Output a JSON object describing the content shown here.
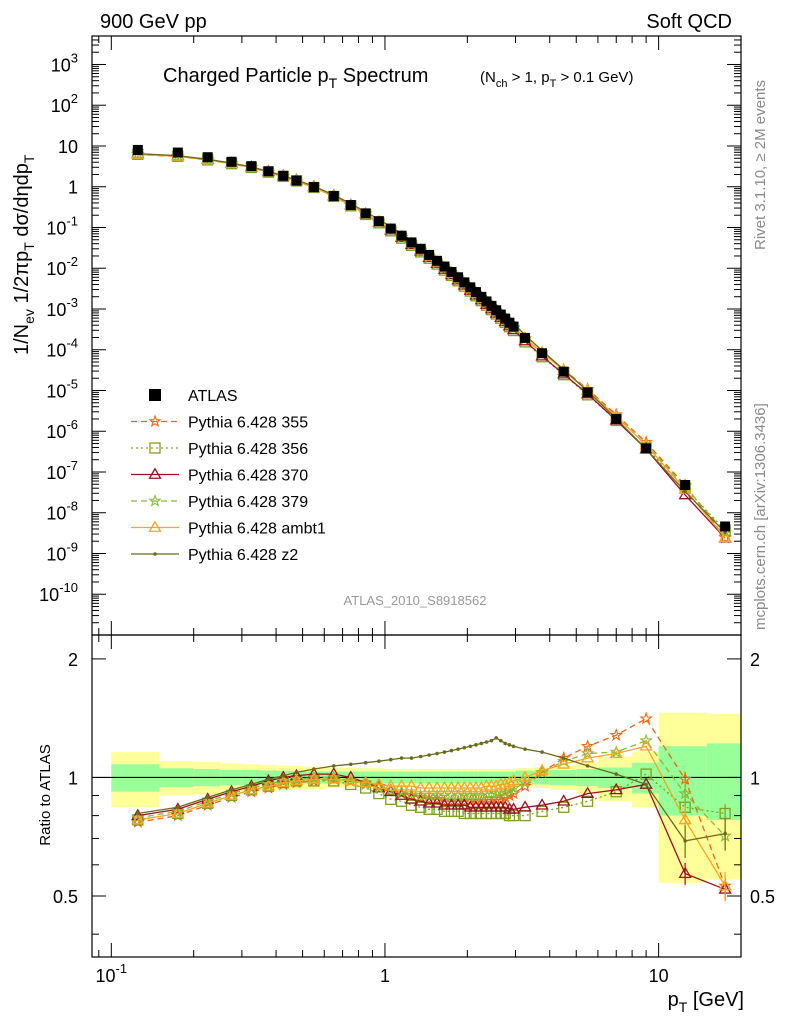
{
  "header": {
    "left": "900 GeV pp",
    "right": "Soft QCD"
  },
  "side_labels": {
    "rivet": "Rivet 3.1.10, ≥ 2M events",
    "mcplots": "mcplots.cern.ch [arXiv:1306.3436]"
  },
  "watermark": "ATLAS_2010_S8918562",
  "chart_data": [
    {
      "type": "scatter",
      "title": "Charged Particle p",
      "title_sub": "T",
      "title_tail": " Spectrum",
      "title_cut": "(N",
      "title_cut_sub1": "ch",
      "title_cut_mid": " > 1, p",
      "title_cut_sub2": "T",
      "title_cut_end": " > 0.1 GeV)",
      "ylabel": "1/N_ev 1/2πp_T dσ/dηdp_T",
      "yscale": "log",
      "xscale": "log",
      "xlim": [
        0.085,
        20
      ],
      "ylim": [
        1e-11,
        5000
      ],
      "y_ticks": [
        {
          "v": 1000.0,
          "m": "10",
          "e": "3"
        },
        {
          "v": 100.0,
          "m": "10",
          "e": "2"
        },
        {
          "v": 10,
          "m": "10",
          "e": ""
        },
        {
          "v": 1,
          "m": "1",
          "e": ""
        },
        {
          "v": 0.1,
          "m": "10",
          "e": "-1"
        },
        {
          "v": 0.01,
          "m": "10",
          "e": "-2"
        },
        {
          "v": 0.001,
          "m": "10",
          "e": "-3"
        },
        {
          "v": 0.0001,
          "m": "10",
          "e": "-4"
        },
        {
          "v": 1e-05,
          "m": "10",
          "e": "-5"
        },
        {
          "v": 1e-06,
          "m": "10",
          "e": "-6"
        },
        {
          "v": 1e-07,
          "m": "10",
          "e": "-7"
        },
        {
          "v": 1e-08,
          "m": "10",
          "e": "-8"
        },
        {
          "v": 1e-09,
          "m": "10",
          "e": "-9"
        },
        {
          "v": 1e-10,
          "m": "10",
          "e": "-10"
        }
      ],
      "legend_position": "lower-left",
      "x": [
        0.125,
        0.175,
        0.225,
        0.275,
        0.325,
        0.375,
        0.425,
        0.475,
        0.55,
        0.65,
        0.75,
        0.85,
        0.95,
        1.05,
        1.15,
        1.25,
        1.35,
        1.45,
        1.55,
        1.65,
        1.75,
        1.85,
        1.95,
        2.05,
        2.15,
        2.25,
        2.35,
        2.45,
        2.55,
        2.65,
        2.75,
        2.85,
        2.95,
        3.25,
        3.75,
        4.5,
        5.5,
        7.0,
        9.0,
        12.5,
        17.5
      ],
      "series": [
        {
          "name": "ATLAS",
          "color": "#000000",
          "marker": "square",
          "values": [
            8.0,
            6.9,
            5.3,
            4.1,
            3.2,
            2.4,
            1.85,
            1.42,
            0.98,
            0.59,
            0.355,
            0.222,
            0.143,
            0.094,
            0.063,
            0.043,
            0.03,
            0.0212,
            0.0152,
            0.011,
            0.0081,
            0.006,
            0.0045,
            0.0034,
            0.0026,
            0.00198,
            0.00153,
            0.00119,
            0.00093,
            0.00073,
            0.00058,
            0.00046,
            0.00037,
            0.000195,
            8.2e-05,
            2.9e-05,
            9e-06,
            2e-06,
            3.8e-07,
            4.8e-08,
            4.6e-09
          ]
        },
        {
          "name": "Pythia 6.428 355",
          "color": "#ee6611",
          "marker": "star",
          "dash": "6,4"
        },
        {
          "name": "Pythia 6.428 356",
          "color": "#7f9f1f",
          "marker": "open-square",
          "dash": "2,3"
        },
        {
          "name": "Pythia 6.428 370",
          "color": "#99111f",
          "marker": "open-triangle",
          "dash": ""
        },
        {
          "name": "Pythia 6.428 379",
          "color": "#88bb33",
          "marker": "star",
          "dash": "6,4"
        },
        {
          "name": "Pythia 6.428 ambt1",
          "color": "#f5a623",
          "marker": "open-triangle",
          "dash": ""
        },
        {
          "name": "Pythia 6.428 z2",
          "color": "#6b6b1a",
          "marker": "dot",
          "dash": ""
        }
      ]
    },
    {
      "type": "line",
      "ylabel": "Ratio to ATLAS",
      "xlabel": "p_T  [GeV]",
      "xscale": "log",
      "xlim": [
        0.085,
        20
      ],
      "ylim": [
        0.35,
        2.3
      ],
      "y_ticks": [
        {
          "v": 0.5,
          "label": "0.5"
        },
        {
          "v": 1,
          "label": "1"
        },
        {
          "v": 2,
          "label": "2"
        }
      ],
      "x_ticks": [
        {
          "v": 0.1,
          "m": "10",
          "e": "-1"
        },
        {
          "v": 1,
          "m": "1",
          "e": ""
        },
        {
          "v": 10,
          "m": "10",
          "e": ""
        }
      ],
      "x": [
        0.125,
        0.175,
        0.225,
        0.275,
        0.325,
        0.375,
        0.425,
        0.475,
        0.55,
        0.65,
        0.75,
        0.85,
        0.95,
        1.05,
        1.15,
        1.25,
        1.35,
        1.45,
        1.55,
        1.65,
        1.75,
        1.85,
        1.95,
        2.05,
        2.15,
        2.25,
        2.35,
        2.45,
        2.55,
        2.65,
        2.75,
        2.85,
        2.95,
        3.25,
        3.75,
        4.5,
        5.5,
        7.0,
        9.0,
        12.5,
        17.5
      ],
      "band_x_edges": [
        0.1,
        0.15,
        0.2,
        0.25,
        0.3,
        0.35,
        0.4,
        0.45,
        0.5,
        0.6,
        0.7,
        0.8,
        0.9,
        1.0,
        1.1,
        1.2,
        1.3,
        1.4,
        1.5,
        1.6,
        1.7,
        1.8,
        1.9,
        2.0,
        2.1,
        2.2,
        2.3,
        2.4,
        2.5,
        2.6,
        2.7,
        2.8,
        2.9,
        3.0,
        3.5,
        4.0,
        5.0,
        6.0,
        8.0,
        10.0,
        15.0,
        20.0
      ],
      "band_inner": [
        0.08,
        0.055,
        0.05,
        0.045,
        0.045,
        0.042,
        0.04,
        0.038,
        0.035,
        0.035,
        0.035,
        0.035,
        0.035,
        0.035,
        0.035,
        0.035,
        0.035,
        0.035,
        0.035,
        0.035,
        0.035,
        0.035,
        0.035,
        0.035,
        0.035,
        0.035,
        0.035,
        0.035,
        0.035,
        0.035,
        0.035,
        0.035,
        0.035,
        0.04,
        0.04,
        0.045,
        0.05,
        0.06,
        0.09,
        0.2,
        0.22
      ],
      "band_outer": [
        0.16,
        0.1,
        0.095,
        0.085,
        0.08,
        0.075,
        0.072,
        0.07,
        0.065,
        0.06,
        0.06,
        0.055,
        0.055,
        0.05,
        0.05,
        0.05,
        0.05,
        0.05,
        0.05,
        0.05,
        0.05,
        0.05,
        0.05,
        0.05,
        0.05,
        0.05,
        0.05,
        0.05,
        0.05,
        0.05,
        0.05,
        0.05,
        0.05,
        0.055,
        0.06,
        0.07,
        0.09,
        0.13,
        0.16,
        0.46,
        0.45
      ],
      "series": [
        {
          "name": "Pythia 6.428 355",
          "color": "#ee6611",
          "marker": "star",
          "dash": "6,4",
          "values": [
            0.77,
            0.8,
            0.85,
            0.89,
            0.92,
            0.94,
            0.96,
            0.97,
            0.98,
            0.99,
            0.98,
            0.97,
            0.95,
            0.93,
            0.91,
            0.9,
            0.89,
            0.88,
            0.88,
            0.87,
            0.87,
            0.87,
            0.87,
            0.87,
            0.87,
            0.87,
            0.87,
            0.87,
            0.88,
            0.88,
            0.89,
            0.9,
            0.91,
            0.95,
            1.03,
            1.12,
            1.2,
            1.28,
            1.41,
            0.99,
            0.53
          ]
        },
        {
          "name": "Pythia 6.428 356",
          "color": "#7f9f1f",
          "marker": "open-square",
          "dash": "2,3",
          "values": [
            0.78,
            0.81,
            0.86,
            0.9,
            0.93,
            0.95,
            0.97,
            0.98,
            0.98,
            0.98,
            0.96,
            0.94,
            0.91,
            0.88,
            0.87,
            0.85,
            0.84,
            0.83,
            0.83,
            0.82,
            0.82,
            0.82,
            0.81,
            0.81,
            0.81,
            0.81,
            0.81,
            0.81,
            0.81,
            0.81,
            0.81,
            0.8,
            0.8,
            0.8,
            0.82,
            0.84,
            0.87,
            0.92,
            1.02,
            0.84,
            0.81
          ]
        },
        {
          "name": "Pythia 6.428 370",
          "color": "#99111f",
          "marker": "open-triangle",
          "dash": "",
          "values": [
            0.8,
            0.83,
            0.88,
            0.92,
            0.95,
            0.98,
            1.0,
            1.01,
            1.02,
            1.02,
            1.0,
            0.97,
            0.94,
            0.92,
            0.9,
            0.88,
            0.87,
            0.86,
            0.86,
            0.85,
            0.85,
            0.85,
            0.85,
            0.84,
            0.84,
            0.84,
            0.84,
            0.84,
            0.84,
            0.84,
            0.84,
            0.83,
            0.83,
            0.84,
            0.85,
            0.87,
            0.91,
            0.93,
            0.96,
            0.57,
            0.52
          ]
        },
        {
          "name": "Pythia 6.428 379",
          "color": "#88bb33",
          "marker": "star",
          "dash": "6,4",
          "values": [
            0.79,
            0.82,
            0.87,
            0.91,
            0.94,
            0.96,
            0.98,
            0.99,
            1.0,
            1.0,
            0.98,
            0.96,
            0.94,
            0.93,
            0.92,
            0.91,
            0.9,
            0.9,
            0.9,
            0.9,
            0.9,
            0.9,
            0.9,
            0.9,
            0.9,
            0.9,
            0.91,
            0.91,
            0.91,
            0.92,
            0.92,
            0.93,
            0.94,
            0.97,
            1.03,
            1.1,
            1.15,
            1.16,
            1.24,
            0.91,
            0.71
          ]
        },
        {
          "name": "Pythia 6.428 ambt1",
          "color": "#f5a623",
          "marker": "open-triangle",
          "dash": "",
          "values": [
            0.78,
            0.81,
            0.86,
            0.9,
            0.93,
            0.95,
            0.97,
            0.98,
            0.99,
            0.99,
            0.98,
            0.97,
            0.96,
            0.95,
            0.95,
            0.95,
            0.94,
            0.94,
            0.94,
            0.94,
            0.94,
            0.94,
            0.94,
            0.94,
            0.94,
            0.94,
            0.95,
            0.95,
            0.95,
            0.96,
            0.96,
            0.97,
            0.98,
            1.0,
            1.04,
            1.08,
            1.12,
            1.15,
            1.2,
            0.78,
            0.53
          ]
        },
        {
          "name": "Pythia 6.428 z2",
          "color": "#6b6b1a",
          "marker": "dot",
          "dash": "",
          "values": [
            0.81,
            0.84,
            0.89,
            0.93,
            0.96,
            0.99,
            1.01,
            1.03,
            1.05,
            1.07,
            1.08,
            1.09,
            1.1,
            1.11,
            1.12,
            1.12,
            1.13,
            1.14,
            1.15,
            1.16,
            1.17,
            1.18,
            1.19,
            1.2,
            1.21,
            1.22,
            1.23,
            1.24,
            1.26,
            1.24,
            1.22,
            1.21,
            1.2,
            1.18,
            1.16,
            1.12,
            1.07,
            1.02,
            0.96,
            0.69,
            0.72
          ]
        }
      ]
    }
  ]
}
